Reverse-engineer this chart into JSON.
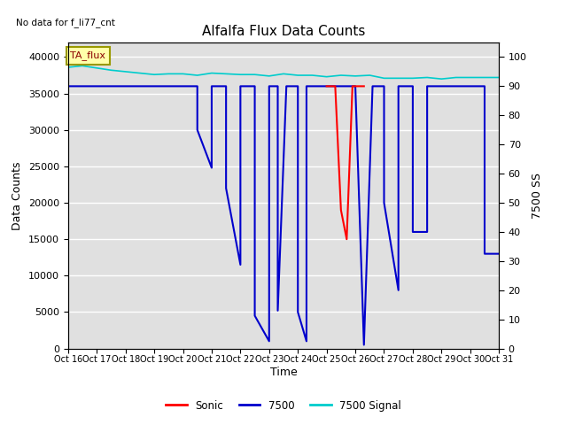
{
  "title": "Alfalfa Flux Data Counts",
  "no_data_label": "No data for f_li77_cnt",
  "xlabel": "Time",
  "ylabel_left": "Data Counts",
  "ylabel_right": "7500 SS",
  "annotation": "TA_flux",
  "xlim": [
    0,
    15
  ],
  "ylim_left": [
    0,
    42000
  ],
  "ylim_right": [
    0,
    105
  ],
  "yticks_left": [
    0,
    5000,
    10000,
    15000,
    20000,
    25000,
    30000,
    35000,
    40000
  ],
  "yticks_right": [
    0,
    10,
    20,
    30,
    40,
    50,
    60,
    70,
    80,
    90,
    100
  ],
  "xtick_labels": [
    "Oct 16",
    "Oct 17",
    "Oct 18",
    "Oct 19",
    "Oct 20",
    "Oct 21",
    "Oct 22",
    "Oct 23",
    "Oct 24",
    "Oct 25",
    "Oct 26",
    "Oct 27",
    "Oct 28",
    "Oct 29",
    "Oct 30",
    "Oct 31"
  ],
  "bg_color": "#e0e0e0",
  "grid_color": "#ffffff",
  "sonic_color": "#ff0000",
  "li7500_color": "#0000cc",
  "signal_color": "#00cccc",
  "legend_entries": [
    "Sonic",
    "7500",
    "7500 Signal"
  ],
  "li7500_x": [
    0,
    4.5,
    4.5,
    5.0,
    5.0,
    5.5,
    5.5,
    6.0,
    6.0,
    6.5,
    6.5,
    7.0,
    7.0,
    7.3,
    7.3,
    7.6,
    7.6,
    8.0,
    8.0,
    8.3,
    8.3,
    8.6,
    8.6,
    9.0,
    9.0,
    9.5,
    9.5,
    10.0,
    10.0,
    10.3,
    10.3,
    10.6,
    10.6,
    11.0,
    11.0,
    11.5,
    11.5,
    12.0,
    12.0,
    12.5,
    12.5,
    13.0,
    13.0,
    13.5,
    13.5,
    14.0,
    14.0,
    14.5,
    14.5,
    15.0
  ],
  "li7500_y": [
    36000,
    36000,
    30000,
    24800,
    36000,
    36000,
    22000,
    11500,
    36000,
    36000,
    4500,
    1000,
    36000,
    36000,
    5200,
    36000,
    36000,
    36000,
    5000,
    1000,
    36000,
    36000,
    36000,
    36000,
    36000,
    36000,
    36000,
    36000,
    36000,
    500,
    500,
    36000,
    36000,
    36000,
    20000,
    8000,
    36000,
    36000,
    16000,
    16000,
    36000,
    36000,
    36000,
    36000,
    36000,
    36000,
    36000,
    36000,
    13000,
    13000
  ],
  "sonic_x": [
    9.0,
    9.05,
    9.3,
    9.5,
    9.7,
    9.9,
    10.1,
    10.3
  ],
  "sonic_y": [
    36000,
    36000,
    36000,
    19000,
    15000,
    36000,
    36000,
    36000
  ],
  "signal_x": [
    0,
    0.5,
    1.0,
    1.5,
    2.0,
    2.5,
    3.0,
    3.5,
    4.0,
    4.5,
    5.0,
    5.5,
    6.0,
    6.5,
    7.0,
    7.5,
    8.0,
    8.5,
    9.0,
    9.5,
    10.0,
    10.5,
    11.0,
    11.5,
    12.0,
    12.5,
    13.0,
    13.5,
    14.0,
    14.5,
    15.0
  ],
  "signal_y": [
    38600,
    38800,
    38500,
    38200,
    38000,
    37800,
    37600,
    37700,
    37700,
    37500,
    37800,
    37700,
    37600,
    37600,
    37400,
    37700,
    37500,
    37500,
    37300,
    37500,
    37400,
    37500,
    37100,
    37100,
    37100,
    37200,
    37000,
    37200,
    37200,
    37200,
    37200
  ]
}
